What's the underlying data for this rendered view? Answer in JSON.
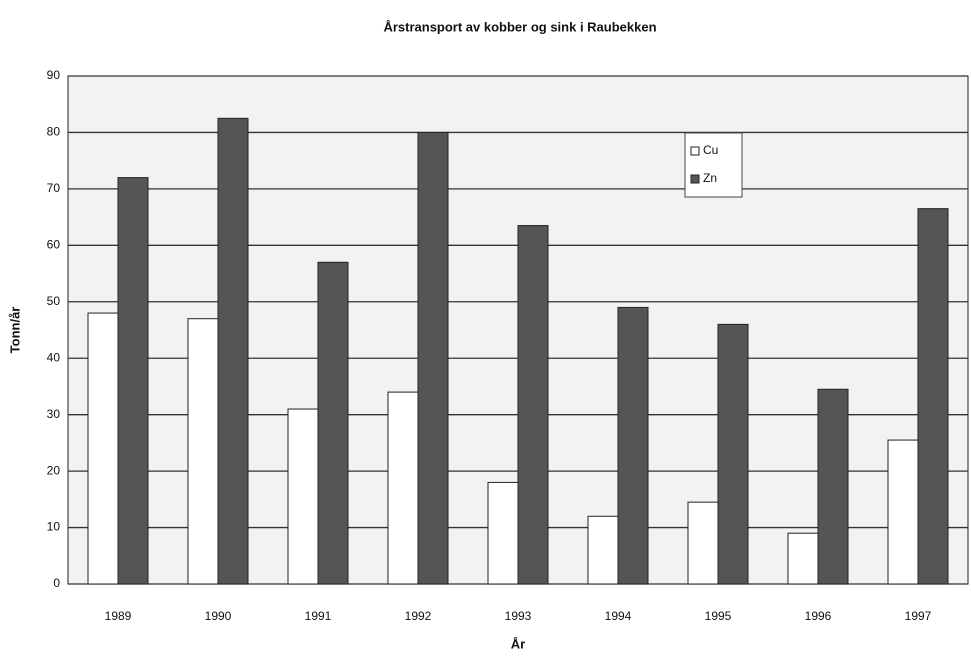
{
  "chart_data": {
    "type": "bar",
    "title": "Årstransport av kobber og sink i Raubekken",
    "x_label": "År",
    "y_label": "Tonn/år",
    "categories": [
      "1989",
      "1990",
      "1991",
      "1992",
      "1993",
      "1994",
      "1995",
      "1996",
      "1997"
    ],
    "series": [
      {
        "name": "Cu",
        "color": "#ffffff",
        "values": [
          48,
          47,
          31,
          34,
          18,
          12,
          14.5,
          9,
          25.5
        ]
      },
      {
        "name": "Zn",
        "color": "#555555",
        "values": [
          72,
          82.5,
          57,
          80,
          63.5,
          49,
          46,
          34.5,
          66.5
        ]
      }
    ],
    "ylim": [
      0,
      90
    ],
    "yticks": [
      0,
      10,
      20,
      30,
      40,
      50,
      60,
      70,
      80,
      90
    ],
    "grid": true,
    "legend": "upper-right"
  }
}
